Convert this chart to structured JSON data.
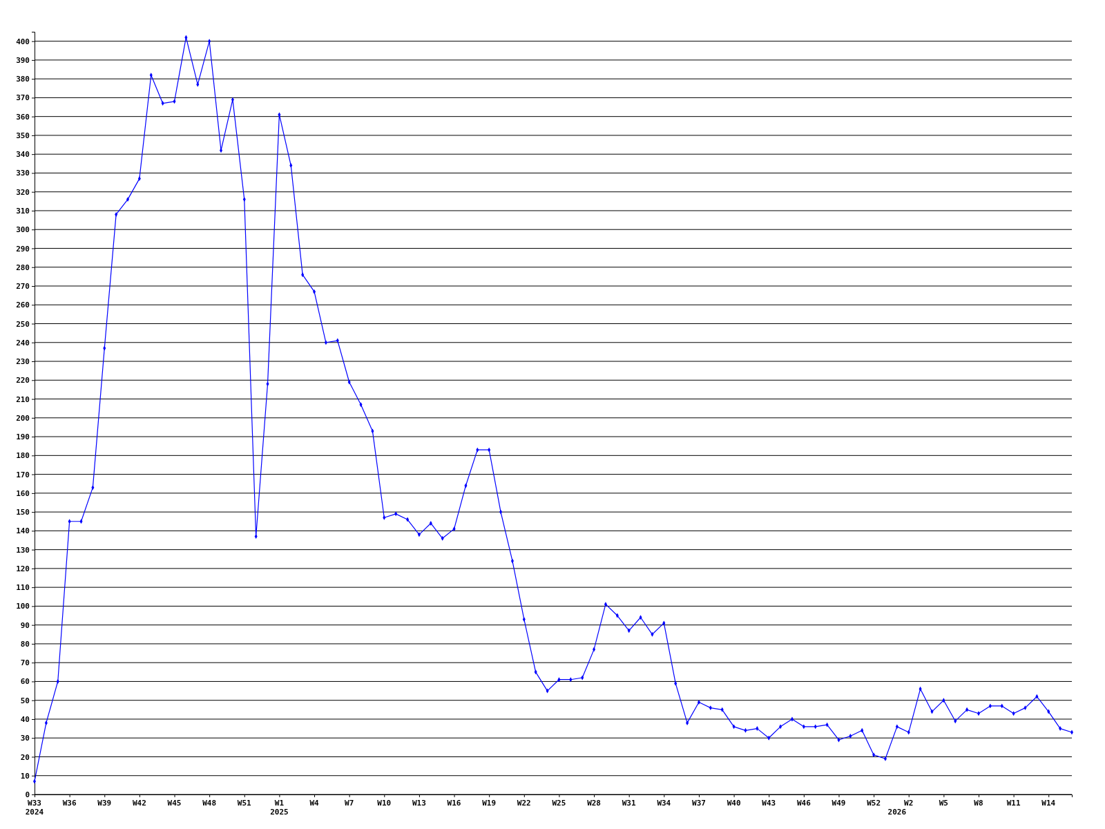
{
  "chart_data": {
    "type": "line",
    "categories": [
      "W33\n2024",
      null,
      null,
      "W36",
      null,
      null,
      "W39",
      null,
      null,
      "W42",
      null,
      null,
      "W45",
      null,
      null,
      "W48",
      null,
      null,
      "W51",
      null,
      null,
      "W1\n2025",
      null,
      null,
      "W4",
      null,
      null,
      "W7",
      null,
      null,
      "W10",
      null,
      null,
      "W13",
      null,
      null,
      "W16",
      null,
      null,
      "W19",
      null,
      null,
      "W22",
      null,
      null,
      "W25",
      null,
      null,
      "W28",
      null,
      null,
      "W31",
      null,
      null,
      "W34",
      null,
      null,
      "W37",
      null,
      null,
      "W40",
      null,
      null,
      "W43",
      null,
      null,
      "W46",
      null,
      null,
      "W49",
      null,
      null,
      "W52",
      null,
      "\n2026",
      "W2",
      null,
      null,
      "W5",
      null,
      null,
      "W8",
      null,
      null,
      "W11",
      null,
      null,
      "W14",
      null,
      null
    ],
    "series": [
      {
        "color": "#0000ff",
        "values": [
          7,
          38,
          60,
          145,
          145,
          163,
          237,
          308,
          316,
          327,
          382,
          367,
          368,
          402,
          377,
          400,
          342,
          369,
          316,
          137,
          218,
          361,
          334,
          276,
          267,
          240,
          241,
          219,
          207,
          193,
          147,
          149,
          146,
          138,
          144,
          136,
          141,
          164,
          183,
          183,
          150,
          124,
          93,
          65,
          55,
          61,
          61,
          62,
          77,
          101,
          95,
          87,
          94,
          85,
          91,
          59,
          38,
          49,
          46,
          45,
          36,
          34,
          35,
          30,
          36,
          40,
          36,
          36,
          37,
          29,
          31,
          34,
          21,
          19,
          36,
          33,
          56,
          44,
          50,
          39,
          45,
          43,
          47,
          47,
          43,
          46,
          52,
          44,
          35,
          33
        ]
      }
    ],
    "ylim": [
      0,
      405
    ],
    "yticks": [
      0,
      10,
      20,
      30,
      40,
      50,
      60,
      70,
      80,
      90,
      100,
      110,
      120,
      130,
      140,
      150,
      160,
      170,
      180,
      190,
      200,
      210,
      220,
      230,
      240,
      250,
      260,
      270,
      280,
      290,
      300,
      310,
      320,
      330,
      340,
      350,
      360,
      370,
      380,
      390,
      400
    ],
    "grid": "y",
    "marker": "diamond",
    "line_style": "solid"
  }
}
